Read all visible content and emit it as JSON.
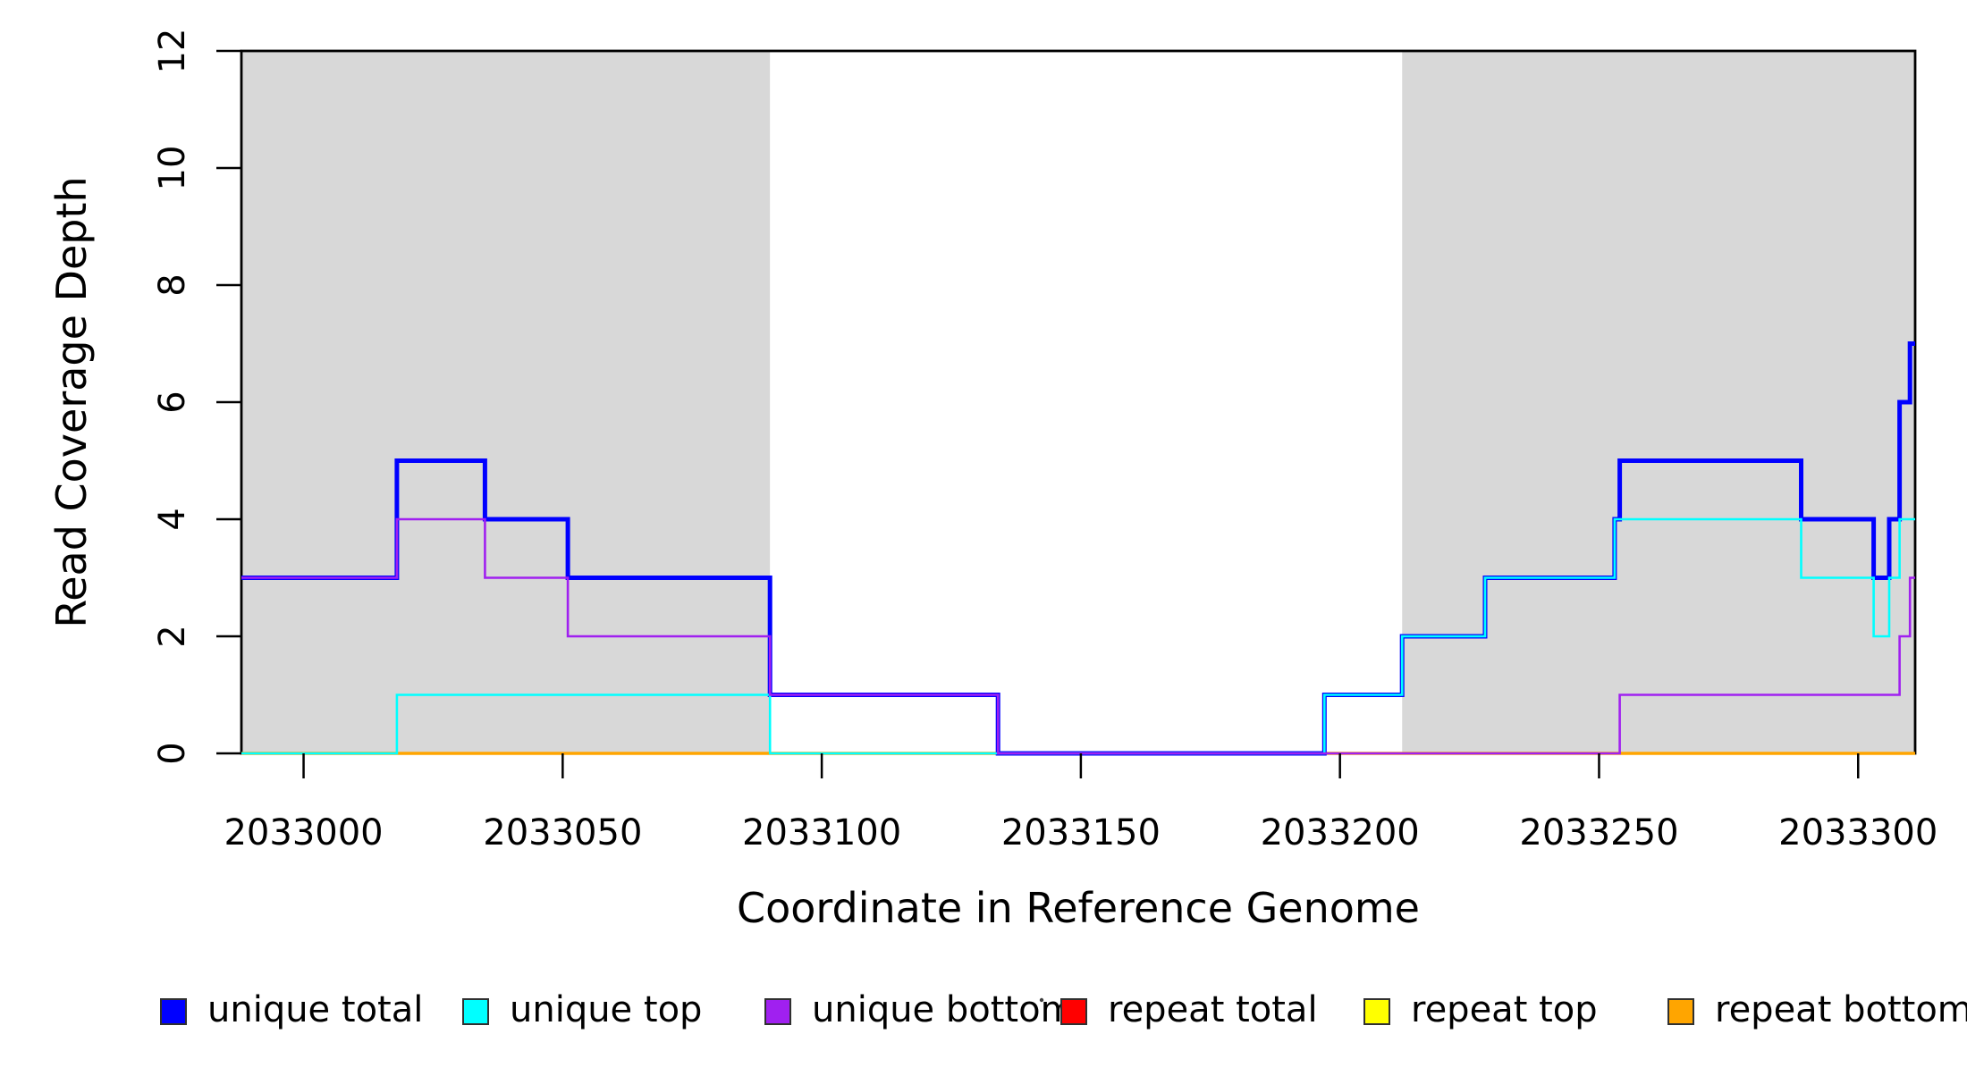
{
  "chart_data": {
    "type": "line",
    "subtype": "step-coverage",
    "xlabel": "Coordinate in Reference Genome",
    "ylabel": "Read Coverage Depth",
    "xlim": [
      2032988,
      2033311
    ],
    "ylim": [
      0,
      12
    ],
    "x_ticks": [
      2033000,
      2033050,
      2033100,
      2033150,
      2033200,
      2033250,
      2033300
    ],
    "y_ticks": [
      0,
      2,
      4,
      6,
      8,
      10,
      12
    ],
    "grid": false,
    "legend_position": "bottom",
    "shade_color": "#D8D8D8",
    "shaded_regions": [
      {
        "name": "repeat-region-left",
        "x_start": 2032988,
        "x_end": 2033090
      },
      {
        "name": "repeat-region-right",
        "x_start": 2033212,
        "x_end": 2033311
      }
    ],
    "x_end": 2033311,
    "series": [
      {
        "name": "unique total",
        "color": "#0000FF",
        "line_width": 5.0,
        "draw_order": 4,
        "steps": [
          [
            2032988,
            3
          ],
          [
            2033018,
            5
          ],
          [
            2033035,
            4
          ],
          [
            2033051,
            3
          ],
          [
            2033090,
            1
          ],
          [
            2033134,
            0
          ],
          [
            2033197,
            1
          ],
          [
            2033212,
            2
          ],
          [
            2033228,
            3
          ],
          [
            2033253,
            4
          ],
          [
            2033254,
            5
          ],
          [
            2033289,
            4
          ],
          [
            2033303,
            3
          ],
          [
            2033306,
            4
          ],
          [
            2033308,
            6
          ],
          [
            2033310,
            7
          ]
        ]
      },
      {
        "name": "unique top",
        "color": "#00FFFF",
        "line_width": 2.6,
        "draw_order": 5,
        "steps": [
          [
            2032988,
            0
          ],
          [
            2033018,
            1
          ],
          [
            2033090,
            0
          ],
          [
            2033197,
            1
          ],
          [
            2033212,
            2
          ],
          [
            2033228,
            3
          ],
          [
            2033253,
            4
          ],
          [
            2033289,
            3
          ],
          [
            2033303,
            2
          ],
          [
            2033306,
            3
          ],
          [
            2033308,
            4
          ]
        ]
      },
      {
        "name": "unique bottom",
        "color": "#A020F0",
        "line_width": 2.6,
        "draw_order": 6,
        "steps": [
          [
            2032988,
            3
          ],
          [
            2033018,
            4
          ],
          [
            2033035,
            3
          ],
          [
            2033051,
            2
          ],
          [
            2033090,
            1
          ],
          [
            2033134,
            0
          ],
          [
            2033254,
            1
          ],
          [
            2033308,
            2
          ],
          [
            2033310,
            3
          ]
        ]
      },
      {
        "name": "repeat total",
        "color": "#FF0000",
        "line_width": 2.4,
        "draw_order": 1,
        "steps": [
          [
            2032988,
            0
          ]
        ]
      },
      {
        "name": "repeat top",
        "color": "#FFFF00",
        "line_width": 2.4,
        "draw_order": 2,
        "steps": [
          [
            2032988,
            0
          ]
        ]
      },
      {
        "name": "repeat bottom",
        "color": "#FFA500",
        "line_width": 3.4,
        "draw_order": 3,
        "steps": [
          [
            2032988,
            0
          ]
        ]
      }
    ],
    "stray_dot": {
      "x": 1165,
      "y": 1119
    }
  }
}
